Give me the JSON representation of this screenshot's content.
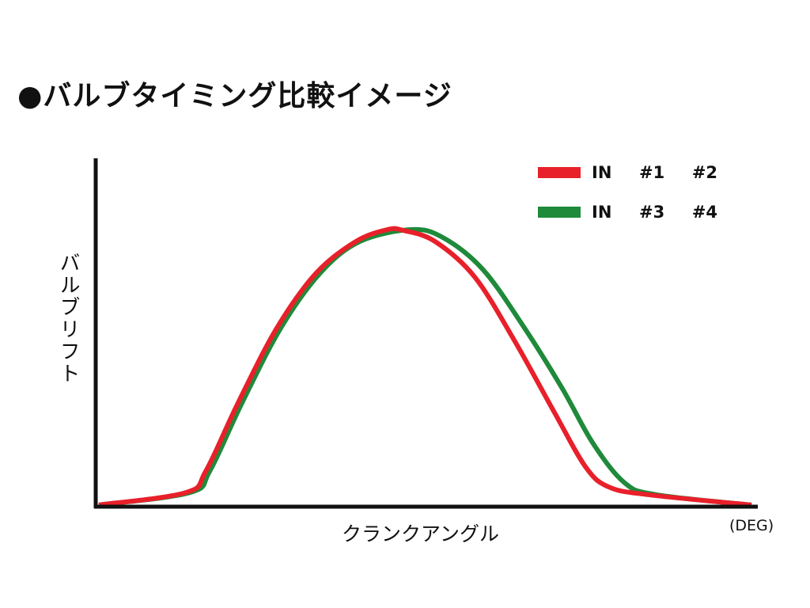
{
  "chart_data": {
    "type": "line",
    "title": "●バルブタイミング比較イメージ",
    "xlabel": "クランクアングル",
    "xunit": "(DEG)",
    "ylabel": "バルブリフト",
    "xlim": [
      0,
      100
    ],
    "ylim": [
      0,
      100
    ],
    "grid": false,
    "legend_position": "top-right",
    "series": [
      {
        "name": "IN  #1  #2",
        "color": "#e8202a",
        "x": [
          0.6,
          13.8,
          16.8,
          21.6,
          27.5,
          33.5,
          39.5,
          44.3,
          46.7,
          51.5,
          57.5,
          63.5,
          69.5,
          74.3,
          77.8,
          83.8,
          99.4
        ],
        "y": [
          0.6,
          5.1,
          12.9,
          37.1,
          64.3,
          84.3,
          95.7,
          100,
          99.7,
          95.7,
          82.9,
          60,
          34.3,
          14.3,
          7.1,
          4.3,
          0.6
        ]
      },
      {
        "name": "IN  #3  #4",
        "color": "#1f8a3a",
        "x": [
          0.6,
          14.4,
          17.4,
          22.2,
          28.1,
          34.1,
          40.1,
          47.9,
          52.7,
          58.7,
          64.7,
          70.7,
          75.4,
          80.2,
          85,
          99.4
        ],
        "y": [
          0.6,
          5.1,
          12.9,
          37.1,
          64.3,
          84.3,
          95.7,
          100,
          97.1,
          85.7,
          65.7,
          42.9,
          22.9,
          8.6,
          4.3,
          0.6
        ]
      }
    ]
  }
}
